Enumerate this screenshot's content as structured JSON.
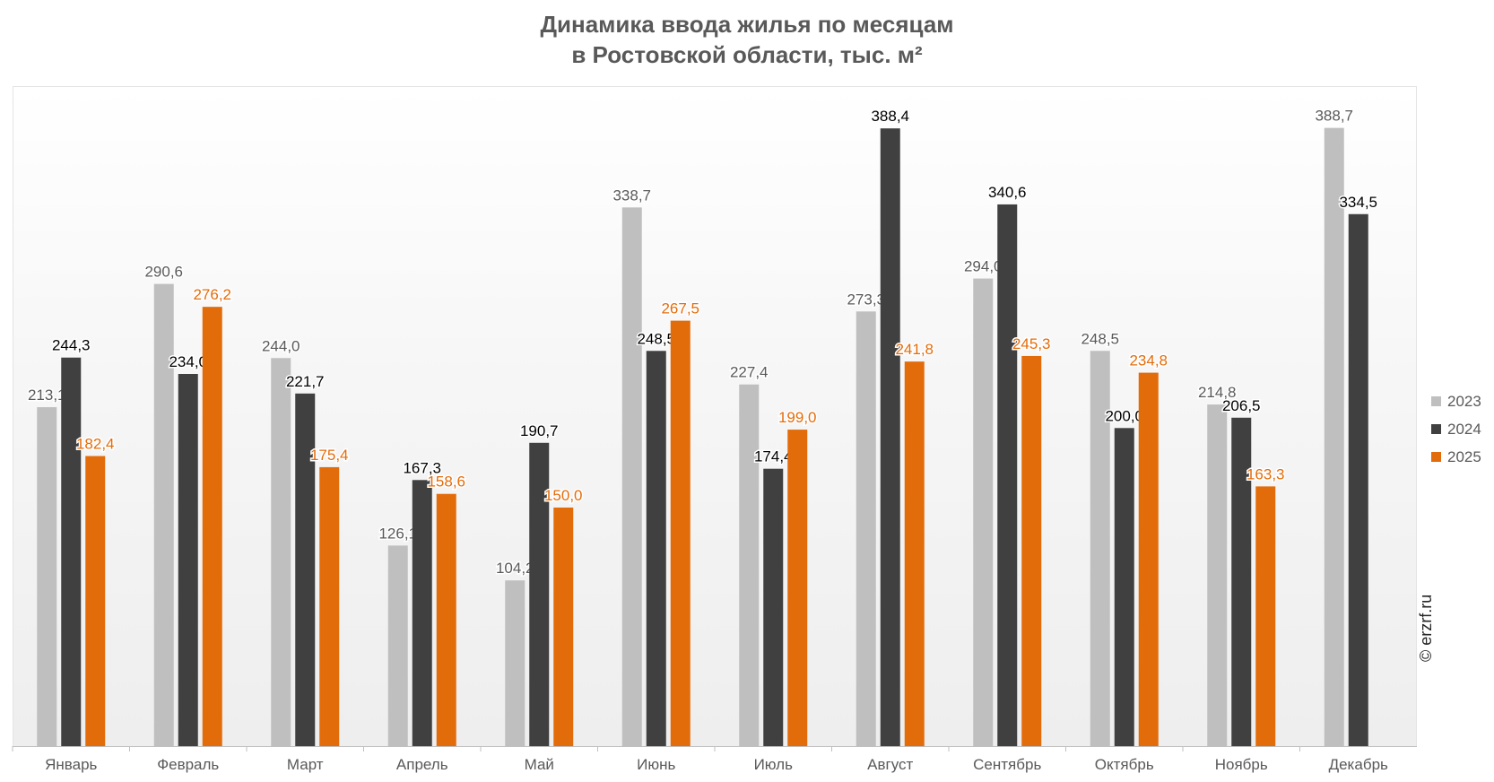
{
  "chart_data": {
    "type": "bar",
    "title_line1": "Динамика ввода жилья по месяцам",
    "title_line2": "в Ростовской области, тыс. м²",
    "categories": [
      "Январь",
      "Февраль",
      "Март",
      "Апрель",
      "Май",
      "Июнь",
      "Июль",
      "Август",
      "Сентябрь",
      "Октябрь",
      "Ноябрь",
      "Декабрь"
    ],
    "series": [
      {
        "name": "2023",
        "color": "#bfbfbf",
        "label_color": "#595959",
        "values": [
          213.1,
          290.6,
          244.0,
          126.1,
          104.2,
          338.7,
          227.4,
          273.3,
          294.0,
          248.5,
          214.8,
          388.7
        ],
        "labels": [
          "213,1",
          "290,6",
          "244,0",
          "126,1",
          "104,2",
          "338,7",
          "227,4",
          "273,3",
          "294,0",
          "248,5",
          "214,8",
          "388,7"
        ]
      },
      {
        "name": "2024",
        "color": "#404040",
        "label_color": "#000000",
        "values": [
          244.3,
          234.0,
          221.7,
          167.3,
          190.7,
          248.5,
          174.4,
          388.4,
          340.6,
          200.0,
          206.5,
          334.5
        ],
        "labels": [
          "244,3",
          "234,0",
          "221,7",
          "167,3",
          "190,7",
          "248,5",
          "174,4",
          "388,4",
          "340,6",
          "200,0",
          "206,5",
          "334,5"
        ]
      },
      {
        "name": "2025",
        "color": "#e36c0a",
        "label_color": "#e36c0a",
        "values": [
          182.4,
          276.2,
          175.4,
          158.6,
          150.0,
          267.5,
          199.0,
          241.8,
          245.3,
          234.8,
          163.3,
          null
        ],
        "labels": [
          "182,4",
          "276,2",
          "175,4",
          "158,6",
          "150,0",
          "267,5",
          "199,0",
          "241,8",
          "245,3",
          "234,8",
          "163,3",
          ""
        ]
      }
    ],
    "ylim": [
      0,
      420
    ],
    "grid": false,
    "legend_position": "right"
  },
  "credit": "© erzrf.ru"
}
